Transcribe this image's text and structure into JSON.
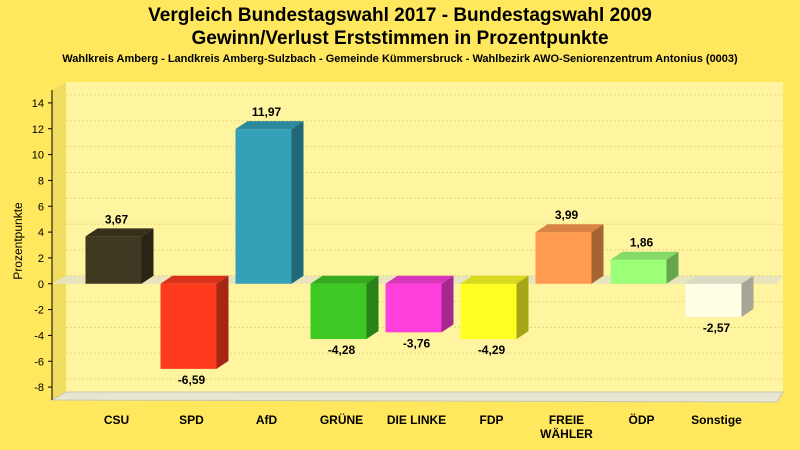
{
  "chart_data": {
    "type": "bar",
    "title": "Vergleich Bundestagswahl 2017 - Bundestagswahl 2009",
    "title_line2": "Gewinn/Verlust Erststimmen in Prozentpunkte",
    "subtitle": "Wahlkreis Amberg - Landkreis Amberg-Sulzbach - Gemeinde Kümmersbruck - Wahlbezirk AWO-Seniorenzentrum Antonius (0003)",
    "ylabel": "Prozentpunkte",
    "ylim": [
      -9,
      15
    ],
    "yticks": [
      -8,
      -6,
      -4,
      -2,
      0,
      2,
      4,
      6,
      8,
      10,
      12,
      14
    ],
    "grid": true,
    "categories": [
      {
        "label": "CSU",
        "value": 3.67,
        "value_label": "3,67",
        "color": "#3F3820"
      },
      {
        "label": "SPD",
        "value": -6.59,
        "value_label": "-6,59",
        "color": "#FF3B1E"
      },
      {
        "label": "AfD",
        "value": 11.97,
        "value_label": "11,97",
        "color": "#35A1B8"
      },
      {
        "label": "GRÜNE",
        "value": -4.28,
        "value_label": "-4,28",
        "color": "#3DC824"
      },
      {
        "label": "DIE LINKE",
        "value": -3.76,
        "value_label": "-3,76",
        "color": "#FF3EDC"
      },
      {
        "label": "FDP",
        "value": -4.29,
        "value_label": "-4,29",
        "color": "#FFFF24"
      },
      {
        "label": "FREIE\nWÄHLER",
        "value": 3.99,
        "value_label": "3,99",
        "color": "#FF9A50"
      },
      {
        "label": "ÖDP",
        "value": 1.86,
        "value_label": "1,86",
        "color": "#9CFF78"
      },
      {
        "label": "Sonstige",
        "value": -2.57,
        "value_label": "-2,57",
        "color": "#FFFFE6"
      }
    ]
  }
}
